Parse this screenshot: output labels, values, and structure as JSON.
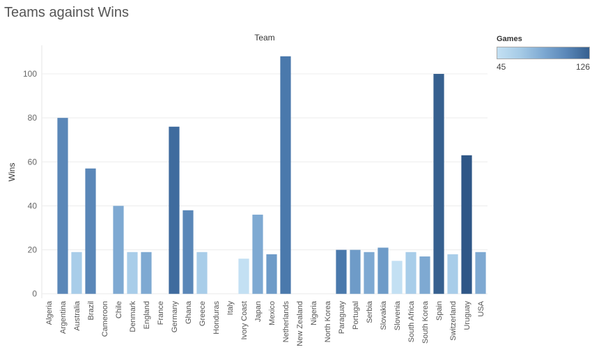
{
  "title": "Teams against Wins",
  "legend": {
    "title": "Games",
    "min_label": "45",
    "max_label": "126",
    "min_color": "#c3e0f3",
    "max_color": "#2f5787"
  },
  "chart_data": {
    "type": "bar",
    "xlabel": "Team",
    "ylabel": "Wins",
    "ylim": [
      -2,
      113
    ],
    "yticks": [
      0,
      20,
      40,
      60,
      80,
      100
    ],
    "grid": true,
    "legend_placement": "top-right",
    "categories": [
      "Algeria",
      "Argentina",
      "Australia",
      "Brazil",
      "Cameroon",
      "Chile",
      "Denmark",
      "England",
      "France",
      "Germany",
      "Ghana",
      "Greece",
      "Honduras",
      "Italy",
      "Ivory Coast",
      "Japan",
      "Mexico",
      "Netherlands",
      "New Zealand",
      "Nigeria",
      "North Korea",
      "Paraguay",
      "Portugal",
      "Serbia",
      "Slovakia",
      "Slovenia",
      "South Africa",
      "South Korea",
      "Spain",
      "Switzerland",
      "Uruguay",
      "USA"
    ],
    "values": [
      0,
      80,
      19,
      57,
      0,
      40,
      19,
      19,
      0,
      76,
      38,
      19,
      0,
      0,
      16,
      36,
      18,
      108,
      0,
      0,
      0,
      20,
      20,
      19,
      21,
      15,
      19,
      17,
      100,
      18,
      63,
      19
    ],
    "colors": [
      "#a8cde9",
      "#5a87b8",
      "#a8cde9",
      "#5a87b8",
      "#a8cde9",
      "#7ea9d2",
      "#a8cde9",
      "#7ea9d2",
      "#a8cde9",
      "#3f6b9e",
      "#5a87b8",
      "#a8cde9",
      "#a8cde9",
      "#a8cde9",
      "#c3e0f3",
      "#7ea9d2",
      "#6e9bc8",
      "#4a79ac",
      "#a8cde9",
      "#a8cde9",
      "#a8cde9",
      "#4a79ac",
      "#6e9bc8",
      "#7ea9d2",
      "#6e9bc8",
      "#c3e0f3",
      "#a8cde9",
      "#7ea9d2",
      "#36608f",
      "#a8cde9",
      "#2f5787",
      "#7ea9d2"
    ]
  }
}
